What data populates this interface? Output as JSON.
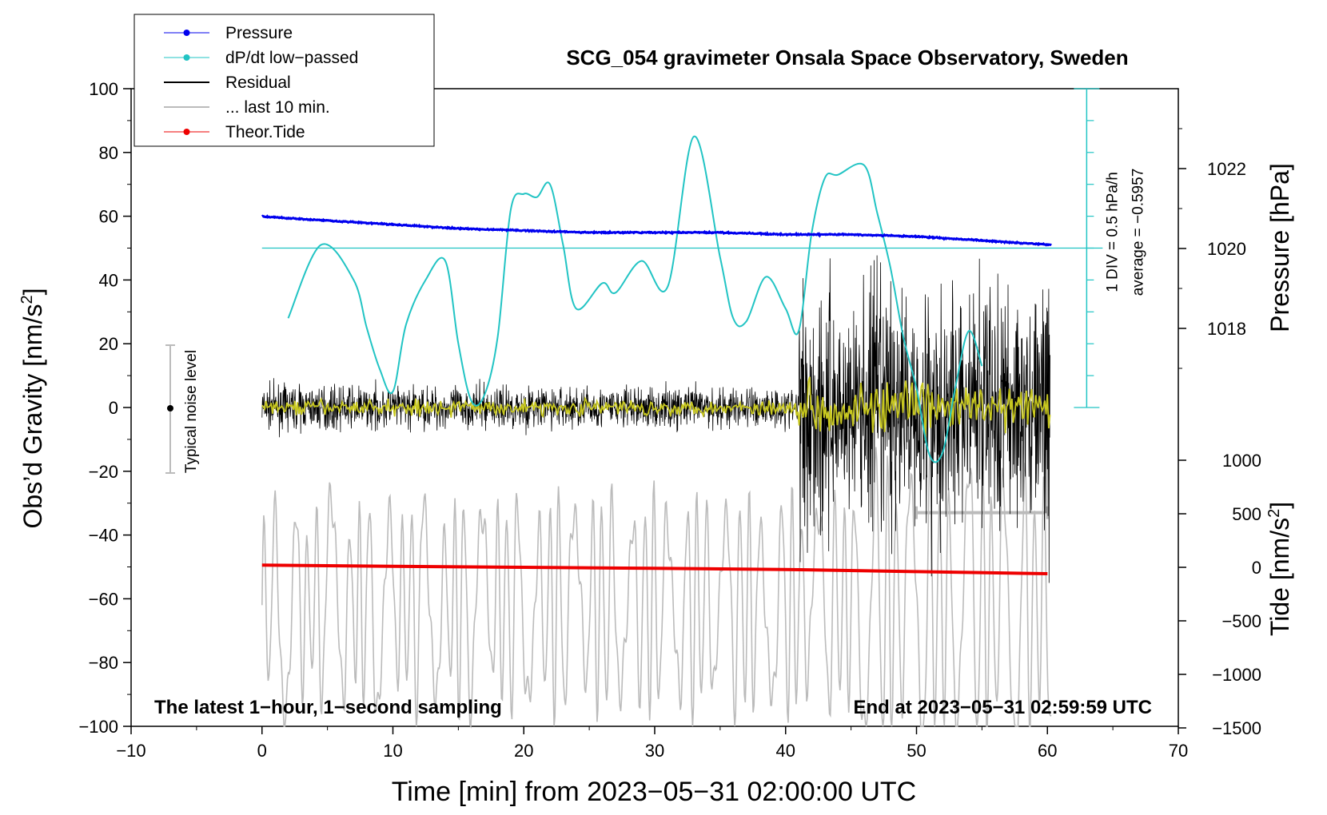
{
  "chart_data": {
    "type": "line",
    "title": "SCG_054 gravimeter Onsala Space Observatory, Sweden",
    "xlabel": "Time [min] from 2023−05−31 02:00:00 UTC",
    "ylabel_left": "Obs’d Gravity [nm/s",
    "ylabel_left_sup": "2",
    "ylabel_left_end": "]",
    "ylabel_right_pressure": "Pressure [hPa]",
    "ylabel_right_tide": "Tide [nm/s",
    "ylabel_right_tide_sup": "2",
    "ylabel_right_tide_end": "]",
    "xlim": [
      -10,
      70
    ],
    "ylim_left": [
      -100,
      100
    ],
    "x_ticks": [
      "−10",
      "0",
      "10",
      "20",
      "30",
      "40",
      "50",
      "60",
      "70"
    ],
    "y_ticks_left": [
      "100",
      "80",
      "60",
      "40",
      "20",
      "0",
      "−20",
      "−40",
      "−60",
      "−80",
      "−100"
    ],
    "pressure_ticks": [
      "1022",
      "1020",
      "1018"
    ],
    "tide_ticks": [
      "1000",
      "500",
      "0",
      "−500",
      "−1000",
      "−1500"
    ],
    "legend": {
      "placement": "top-left",
      "entries": [
        {
          "label": "Pressure",
          "color": "#0000ee",
          "marker": true
        },
        {
          "label": "dP/dt low−passed",
          "color": "#22c4c4",
          "marker": true
        },
        {
          "label": "Residual",
          "color": "#000000",
          "marker": false
        },
        {
          "label": "... last 10 min.",
          "color": "#bbbbbb",
          "marker": false
        },
        {
          "label": "Theor.Tide",
          "color": "#ee0000",
          "marker": true
        }
      ]
    },
    "dpdt_scale_label_1": "1 DIV = 0.5 hPa/h",
    "dpdt_scale_label_2": "average = −0.5957",
    "noise_label": "Typical noise level",
    "noise_range": [
      -20,
      20
    ],
    "annotation_left": "The latest 1−hour, 1−second sampling",
    "annotation_right": "End at 2023−05−31 02:59:59 UTC",
    "series": [
      {
        "name": "Pressure",
        "axis": "pressure_hPa",
        "color": "#0000ee",
        "x": [
          0,
          5,
          10,
          15,
          20,
          25,
          30,
          35,
          40,
          45,
          50,
          55,
          60
        ],
        "values": [
          1020.8,
          1020.7,
          1020.6,
          1020.5,
          1020.45,
          1020.4,
          1020.4,
          1020.4,
          1020.35,
          1020.35,
          1020.3,
          1020.2,
          1020.1
        ]
      },
      {
        "name": "dP/dt low−passed",
        "axis": "gravity_units",
        "color": "#22c4c4",
        "x": [
          2,
          4.5,
          7,
          8,
          9,
          10,
          11,
          12.5,
          14,
          15,
          16,
          17,
          18,
          19,
          20,
          21,
          22,
          23,
          24,
          26,
          27,
          29,
          31,
          33,
          35,
          36,
          37,
          38.5,
          40,
          41,
          42,
          43,
          44,
          46,
          47,
          48,
          49,
          50,
          51,
          52,
          53,
          54,
          55
        ],
        "values": [
          28,
          51,
          40,
          25,
          12,
          5,
          26,
          40,
          46,
          20,
          2,
          4,
          22,
          62,
          67,
          66,
          70,
          51,
          31,
          39,
          36,
          46,
          38,
          85,
          47,
          28,
          27,
          41,
          31,
          24,
          55,
          72,
          73,
          76,
          61,
          44,
          22,
          6,
          -15,
          -14,
          7,
          24,
          13
        ]
      },
      {
        "name": "Theor.Tide",
        "axis": "tide_nm_s2",
        "color": "#ee0000",
        "x": [
          0,
          10,
          20,
          30,
          40,
          50,
          60
        ],
        "values": [
          20,
          10,
          0,
          -10,
          -20,
          -40,
          -60
        ]
      }
    ]
  }
}
